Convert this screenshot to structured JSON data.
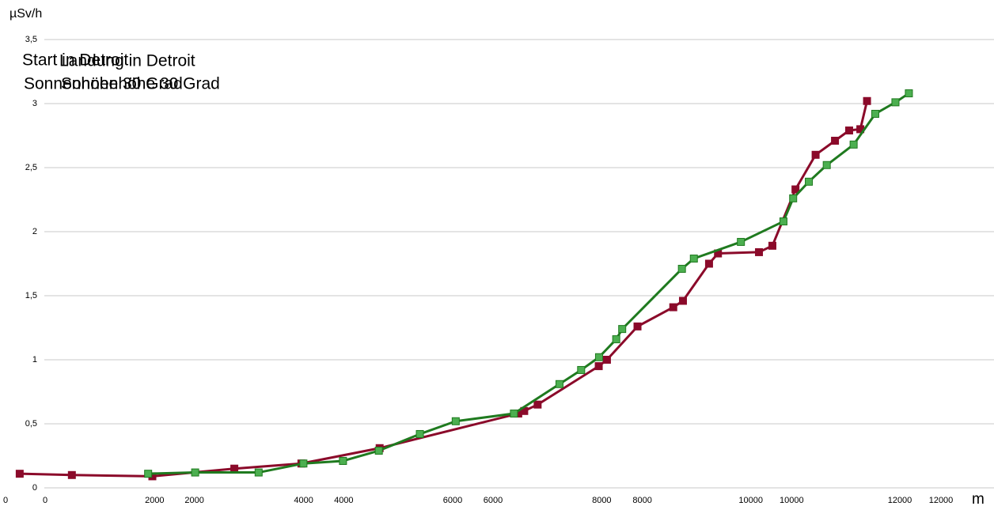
{
  "chart_data": [
    {
      "type": "line",
      "title": "Start in Detroit",
      "subtitle": "Sonnenhöhe 30 Grad",
      "y_label": "µSv/h",
      "x_label": "m",
      "grid": true,
      "x": [
        190,
        890,
        1970,
        3070,
        3970,
        5020,
        6880,
        6960,
        7140,
        7960,
        8070,
        8480,
        8960,
        9090,
        9440,
        9560,
        10110,
        10290,
        10600,
        10870,
        11130,
        11320,
        11470,
        11560
      ],
      "series": [
        {
          "color": "#8b0a2a",
          "values": [
            0.11,
            0.1,
            0.09,
            0.15,
            0.19,
            0.31,
            0.58,
            0.6,
            0.65,
            0.95,
            1.0,
            1.26,
            1.41,
            1.46,
            1.75,
            1.83,
            1.84,
            1.89,
            2.33,
            2.6,
            2.71,
            2.79,
            2.8,
            3.02
          ]
        }
      ],
      "xlim": [
        0,
        12000
      ],
      "xticks": [
        0,
        2000,
        4000,
        6000,
        8000,
        10000,
        12000
      ],
      "ylim": [
        0,
        3.5
      ],
      "yticks": [
        0,
        {
          "value": 0.5,
          "label": "0,5"
        },
        1,
        {
          "value": 1.5,
          "label": "1,5"
        },
        2,
        {
          "value": 2.5,
          "label": "2,5"
        },
        3,
        {
          "value": 3.5,
          "label": "3,5"
        }
      ]
    },
    {
      "type": "line",
      "title": "Landung in Detroit",
      "subtitle": "Sonnenhöhe 30 Grad",
      "x": [
        1380,
        2010,
        2860,
        3460,
        3990,
        4470,
        5020,
        5500,
        6280,
        6890,
        7180,
        7420,
        7650,
        7730,
        8530,
        8690,
        9320,
        9890,
        10020,
        10230,
        10470,
        10830,
        11120,
        11390,
        11570
      ],
      "series": [
        {
          "color": "#1f7a1f",
          "values": [
            0.11,
            0.12,
            0.12,
            0.19,
            0.21,
            0.29,
            0.42,
            0.52,
            0.58,
            0.81,
            0.92,
            1.02,
            1.16,
            1.24,
            1.71,
            1.79,
            1.92,
            2.08,
            2.26,
            2.39,
            2.52,
            2.68,
            2.92,
            3.01,
            3.08
          ]
        }
      ],
      "xlim": [
        0,
        12000
      ],
      "xticks": [
        0,
        2000,
        4000,
        6000,
        8000,
        10000,
        12000
      ],
      "ylim": [
        0,
        3.5
      ]
    }
  ]
}
